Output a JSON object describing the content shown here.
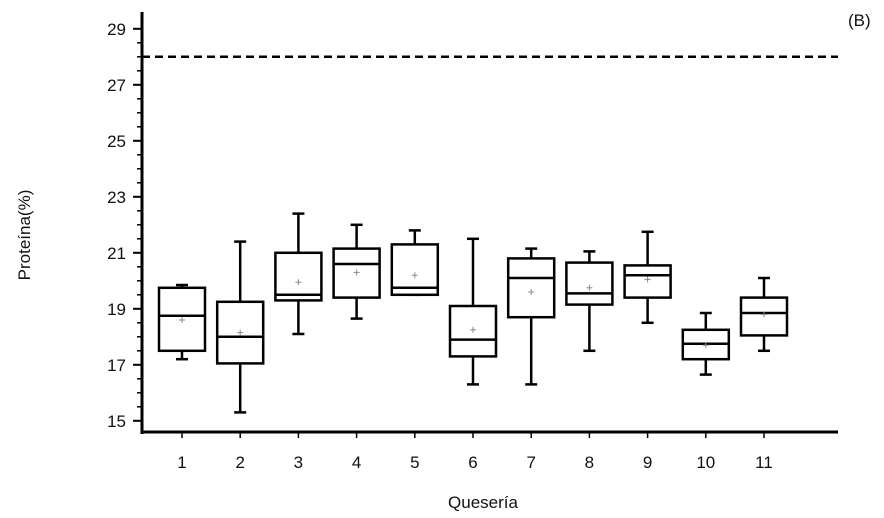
{
  "chart_data": {
    "type": "box",
    "panel_label": "(B)",
    "xlabel": "Quesería",
    "ylabel": "Proteína(%)",
    "ylim": [
      14.6,
      29.6
    ],
    "yticks": [
      15,
      17,
      19,
      21,
      23,
      25,
      27,
      29
    ],
    "categories": [
      "1",
      "2",
      "3",
      "4",
      "5",
      "6",
      "7",
      "8",
      "9",
      "10",
      "11"
    ],
    "reference_line": 28.0,
    "boxes": [
      {
        "category": "1",
        "min": 17.2,
        "q1": 17.5,
        "median": 18.75,
        "q3": 19.75,
        "max": 19.85,
        "mean": 18.6
      },
      {
        "category": "2",
        "min": 15.3,
        "q1": 17.05,
        "median": 18.0,
        "q3": 19.25,
        "max": 21.4,
        "mean": 18.15
      },
      {
        "category": "3",
        "min": 18.1,
        "q1": 19.3,
        "median": 19.5,
        "q3": 21.0,
        "max": 22.4,
        "mean": 19.95
      },
      {
        "category": "4",
        "min": 18.65,
        "q1": 19.4,
        "median": 20.6,
        "q3": 21.15,
        "max": 22.0,
        "mean": 20.3
      },
      {
        "category": "5",
        "min": 19.5,
        "q1": 19.5,
        "median": 19.75,
        "q3": 21.3,
        "max": 21.8,
        "mean": 20.2
      },
      {
        "category": "6",
        "min": 16.3,
        "q1": 17.3,
        "median": 17.9,
        "q3": 19.1,
        "max": 21.5,
        "mean": 18.25
      },
      {
        "category": "7",
        "min": 16.3,
        "q1": 18.7,
        "median": 20.1,
        "q3": 20.8,
        "max": 21.15,
        "mean": 19.6
      },
      {
        "category": "8",
        "min": 17.5,
        "q1": 19.15,
        "median": 19.55,
        "q3": 20.65,
        "max": 21.05,
        "mean": 19.75
      },
      {
        "category": "9",
        "min": 18.5,
        "q1": 19.4,
        "median": 20.2,
        "q3": 20.55,
        "max": 21.75,
        "mean": 20.05
      },
      {
        "category": "10",
        "min": 16.65,
        "q1": 17.2,
        "median": 17.75,
        "q3": 18.25,
        "max": 18.85,
        "mean": 17.7
      },
      {
        "category": "11",
        "min": 17.5,
        "q1": 18.05,
        "median": 18.85,
        "q3": 19.4,
        "max": 20.1,
        "mean": 18.8
      }
    ]
  }
}
